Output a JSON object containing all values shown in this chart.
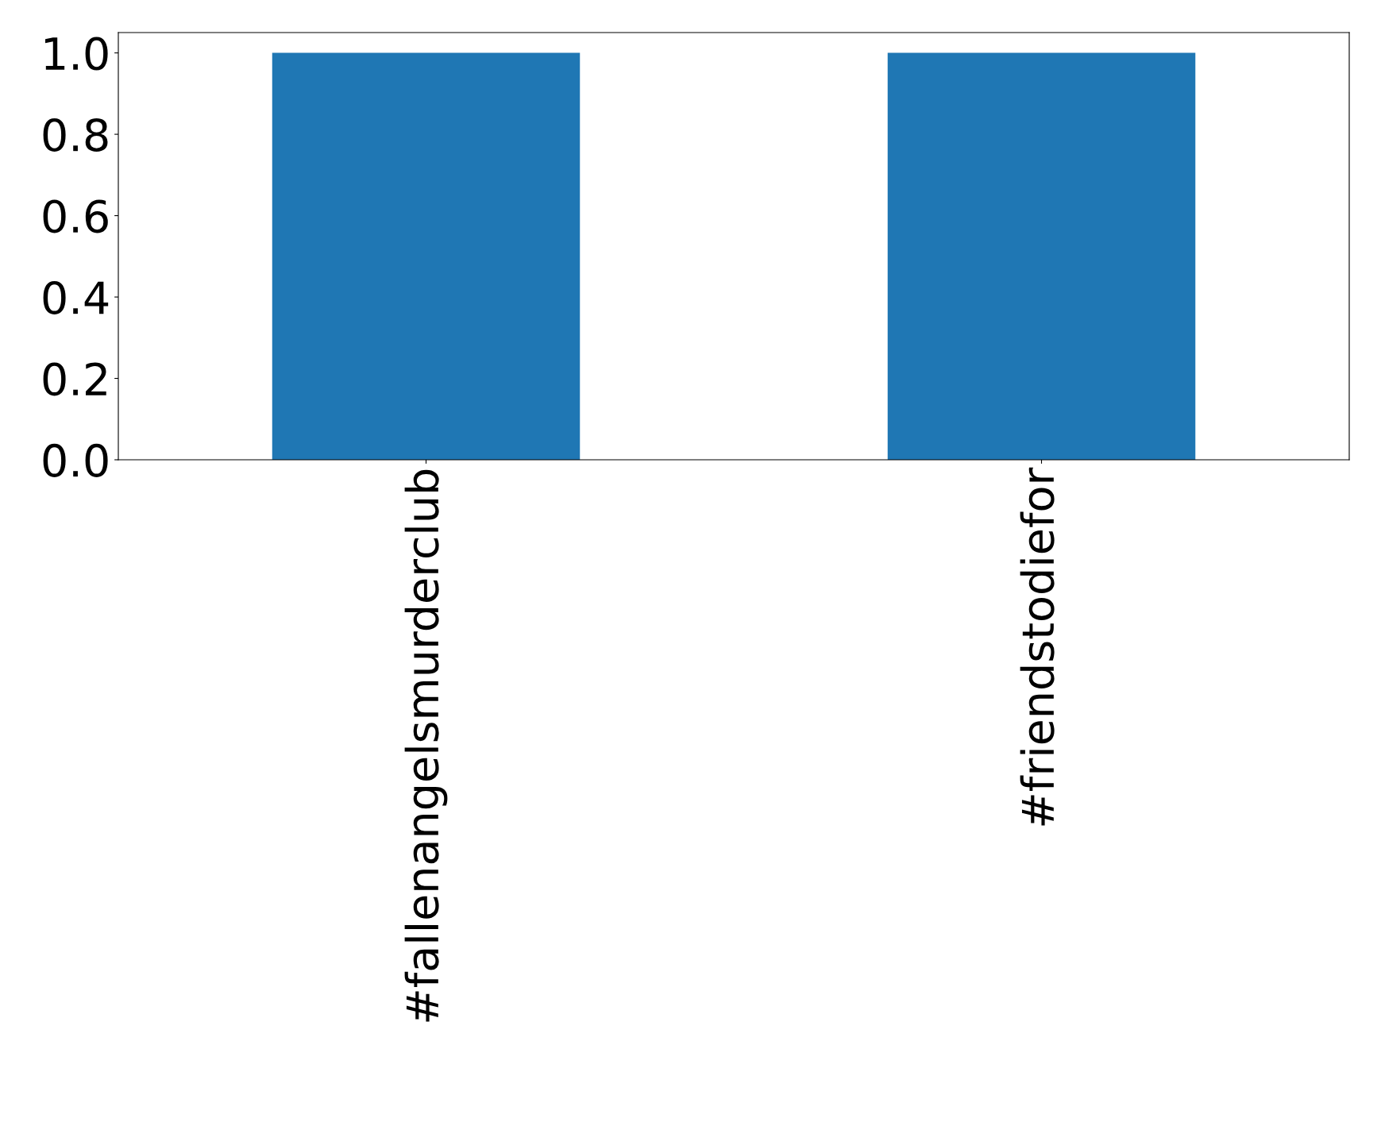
{
  "chart_data": {
    "type": "bar",
    "categories": [
      "#fallenangelsmurderclub",
      "#friendstodiefor"
    ],
    "values": [
      1.0,
      1.0
    ],
    "color": "#1f77b4",
    "ylim": [
      0,
      1.05
    ],
    "yticks": [
      {
        "value": 0,
        "label": "0.0"
      },
      {
        "value": 0.2,
        "label": "0.2"
      },
      {
        "value": 0.4,
        "label": "0.4"
      },
      {
        "value": 0.6,
        "label": "0.6"
      },
      {
        "value": 0.8,
        "label": "0.8"
      },
      {
        "value": 1.0,
        "label": "1.0"
      }
    ],
    "grid": false,
    "legend": false
  }
}
